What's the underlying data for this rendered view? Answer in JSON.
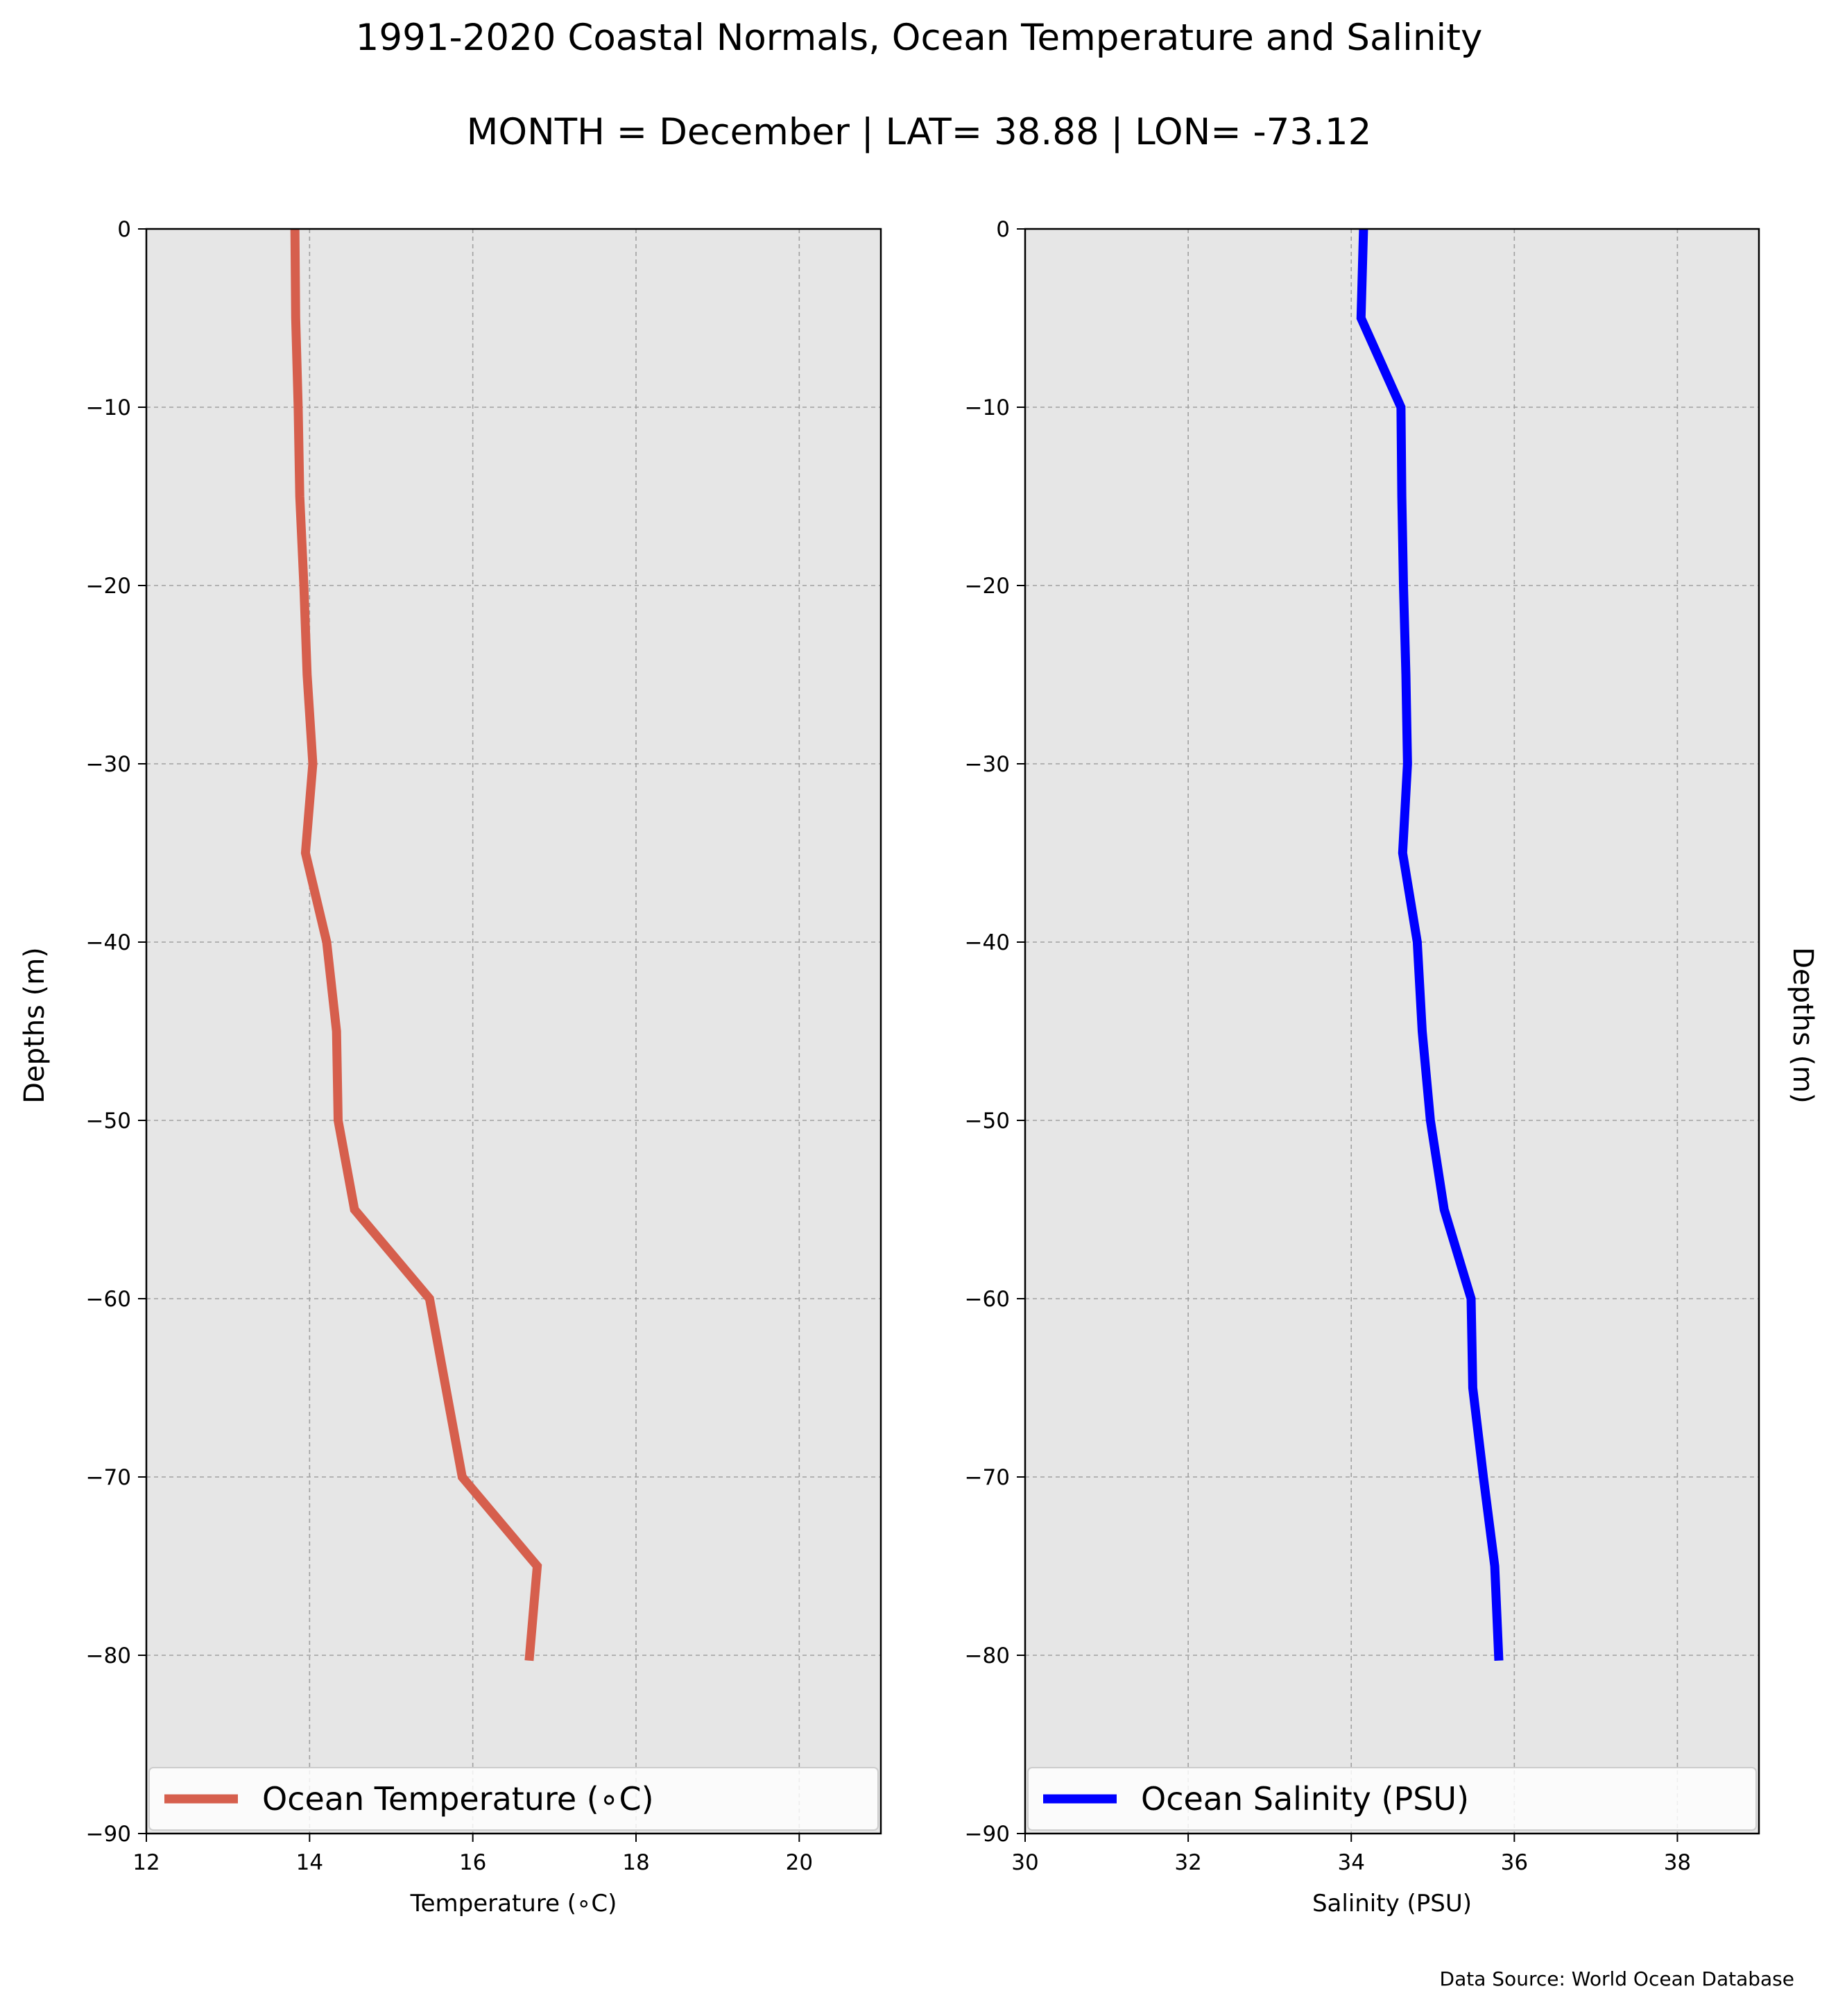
{
  "header": {
    "title": "1991-2020 Coastal Normals, Ocean Temperature and Salinity",
    "subtitle": "MONTH = December | LAT= 38.88 | LON= -73.12"
  },
  "footer": {
    "source": "Data Source: World Ocean Database"
  },
  "chart_data": [
    {
      "type": "line",
      "xlabel": "Temperature ($^\\circ$C)",
      "xlabel_display": "Temperature (∘C)",
      "ylabel": "Depths (m)",
      "xlim": [
        12,
        21
      ],
      "ylim": [
        -90,
        0
      ],
      "xticks": [
        12,
        14,
        16,
        18,
        20
      ],
      "yticks": [
        0,
        -10,
        -20,
        -30,
        -40,
        -50,
        -60,
        -70,
        -80,
        -90
      ],
      "xtick_labels": [
        "12",
        "14",
        "16",
        "18",
        "20"
      ],
      "ytick_labels": [
        "0",
        "−10",
        "−20",
        "−30",
        "−40",
        "−50",
        "−60",
        "−70",
        "−80",
        "−90"
      ],
      "grid": true,
      "background": "#e6e6e6",
      "legend": {
        "placement": "bottom",
        "entries": [
          "Ocean Temperature (∘C)"
        ]
      },
      "series": [
        {
          "name": "Ocean Temperature (∘C)",
          "color": "#d65f4d",
          "points": [
            {
              "x": 13.82,
              "y": 0
            },
            {
              "x": 13.83,
              "y": -5
            },
            {
              "x": 13.86,
              "y": -10
            },
            {
              "x": 13.88,
              "y": -15
            },
            {
              "x": 13.93,
              "y": -20
            },
            {
              "x": 13.97,
              "y": -25
            },
            {
              "x": 14.04,
              "y": -30
            },
            {
              "x": 13.95,
              "y": -35
            },
            {
              "x": 14.21,
              "y": -40
            },
            {
              "x": 14.33,
              "y": -45
            },
            {
              "x": 14.35,
              "y": -50
            },
            {
              "x": 14.55,
              "y": -55
            },
            {
              "x": 15.47,
              "y": -60
            },
            {
              "x": 15.67,
              "y": -65
            },
            {
              "x": 15.87,
              "y": -70
            },
            {
              "x": 16.79,
              "y": -75
            },
            {
              "x": 16.69,
              "y": -80.3
            }
          ]
        }
      ]
    },
    {
      "type": "line",
      "xlabel": "Salinity (PSU)",
      "ylabel": "Depths (m)",
      "xlim": [
        30,
        39
      ],
      "ylim": [
        -90,
        0
      ],
      "xticks": [
        30,
        32,
        34,
        36,
        38
      ],
      "yticks": [
        0,
        -10,
        -20,
        -30,
        -40,
        -50,
        -60,
        -70,
        -80,
        -90
      ],
      "xtick_labels": [
        "30",
        "32",
        "34",
        "36",
        "38"
      ],
      "ytick_labels": [
        "0",
        "−10",
        "−20",
        "−30",
        "−40",
        "−50",
        "−60",
        "−70",
        "−80",
        "−90"
      ],
      "grid": true,
      "background": "#e6e6e6",
      "legend": {
        "placement": "bottom",
        "entries": [
          "Ocean Salinity (PSU)"
        ]
      },
      "series": [
        {
          "name": "Ocean Salinity (PSU)",
          "color": "#0000ff",
          "points": [
            {
              "x": 34.15,
              "y": 0
            },
            {
              "x": 34.12,
              "y": -5
            },
            {
              "x": 34.61,
              "y": -10
            },
            {
              "x": 34.62,
              "y": -15
            },
            {
              "x": 34.64,
              "y": -20
            },
            {
              "x": 34.67,
              "y": -25
            },
            {
              "x": 34.69,
              "y": -30
            },
            {
              "x": 34.63,
              "y": -35
            },
            {
              "x": 34.81,
              "y": -40
            },
            {
              "x": 34.87,
              "y": -45
            },
            {
              "x": 34.97,
              "y": -50
            },
            {
              "x": 35.14,
              "y": -55
            },
            {
              "x": 35.47,
              "y": -60
            },
            {
              "x": 35.49,
              "y": -65
            },
            {
              "x": 35.62,
              "y": -70
            },
            {
              "x": 35.76,
              "y": -75
            },
            {
              "x": 35.81,
              "y": -80.3
            }
          ]
        }
      ]
    }
  ]
}
